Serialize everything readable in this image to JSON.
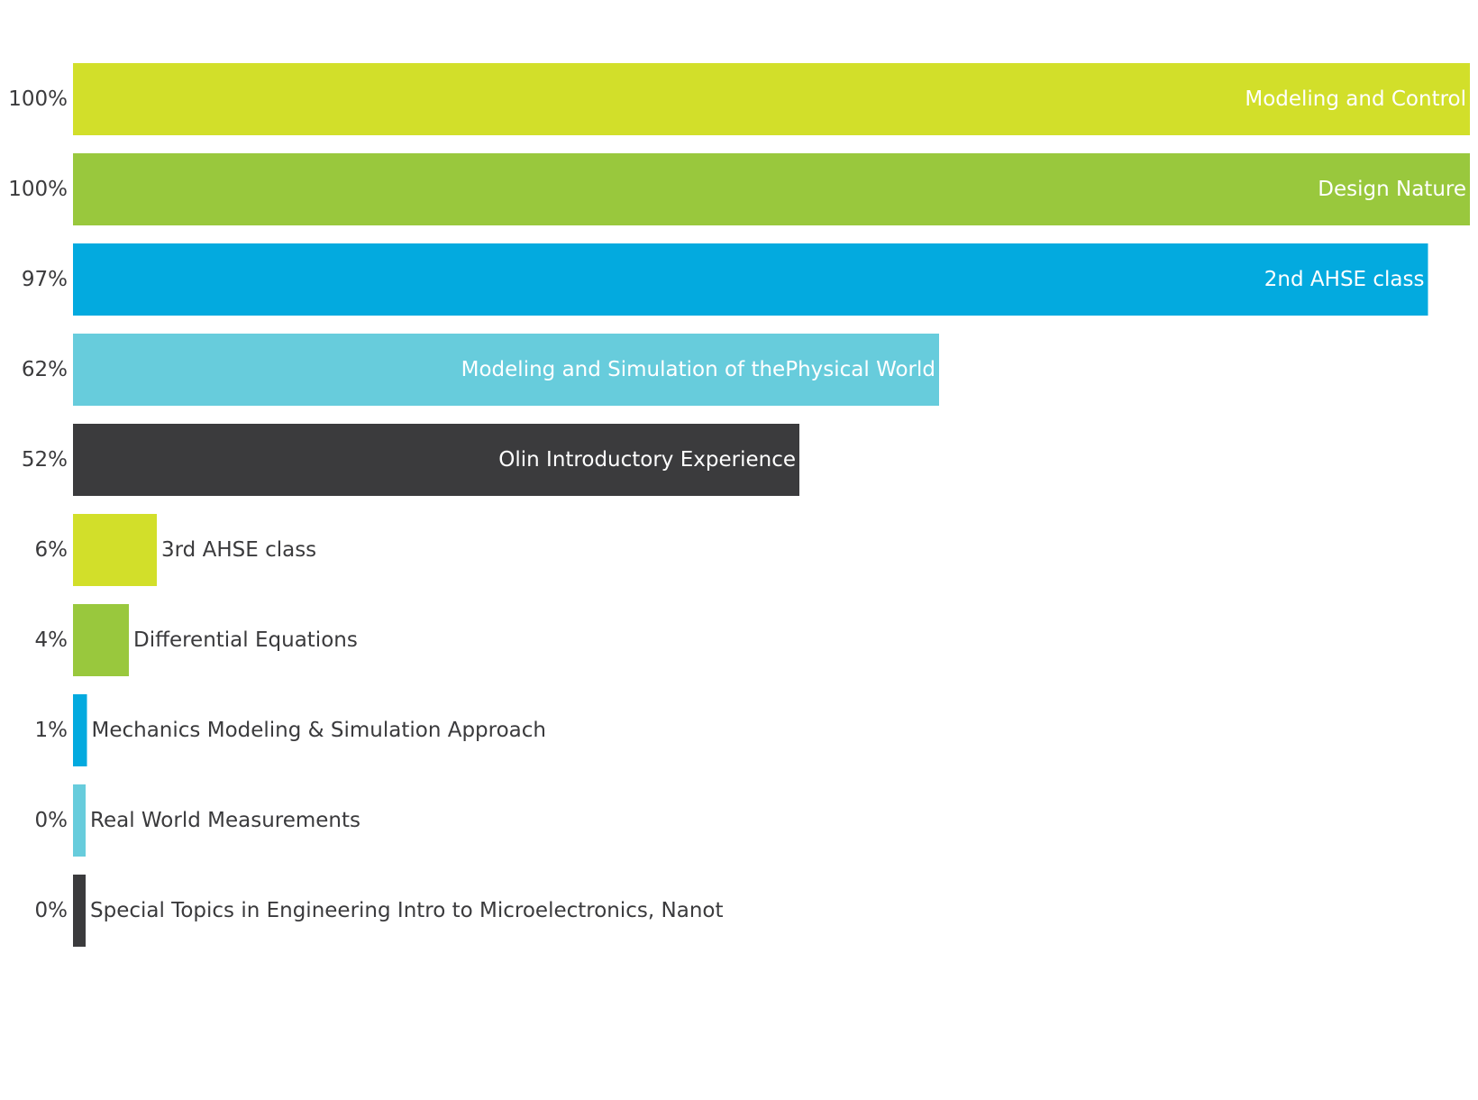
{
  "chart_data": {
    "type": "bar",
    "orientation": "horizontal",
    "categories": [
      "Modeling and Control",
      "Design Nature",
      "2nd AHSE class",
      "Modeling and Simulation of thePhysical World",
      "Olin Introductory Experience",
      "3rd AHSE class",
      "Differential Equations",
      "Mechanics Modeling & Simulation Approach",
      "Real World Measurements",
      "Special Topics in Engineering Intro to Microelectronics, Nanot"
    ],
    "values": [
      100,
      100,
      97,
      62,
      52,
      6,
      4,
      1,
      0,
      0
    ],
    "value_labels": [
      "100%",
      "100%",
      "97%",
      "62%",
      "52%",
      "6%",
      "4%",
      "1%",
      "0%",
      "0%"
    ],
    "colors": [
      "#d2df2a",
      "#99c83d",
      "#03aadf",
      "#67ccdc",
      "#3b3b3d",
      "#d2df2a",
      "#99c83d",
      "#03aadf",
      "#67ccdc",
      "#3b3b3d"
    ],
    "label_inside_color": "#ffffff",
    "label_outside_color": "#3a3a3c",
    "xlim": [
      0,
      100
    ],
    "unit": "%",
    "grid": false,
    "legend": "none"
  }
}
